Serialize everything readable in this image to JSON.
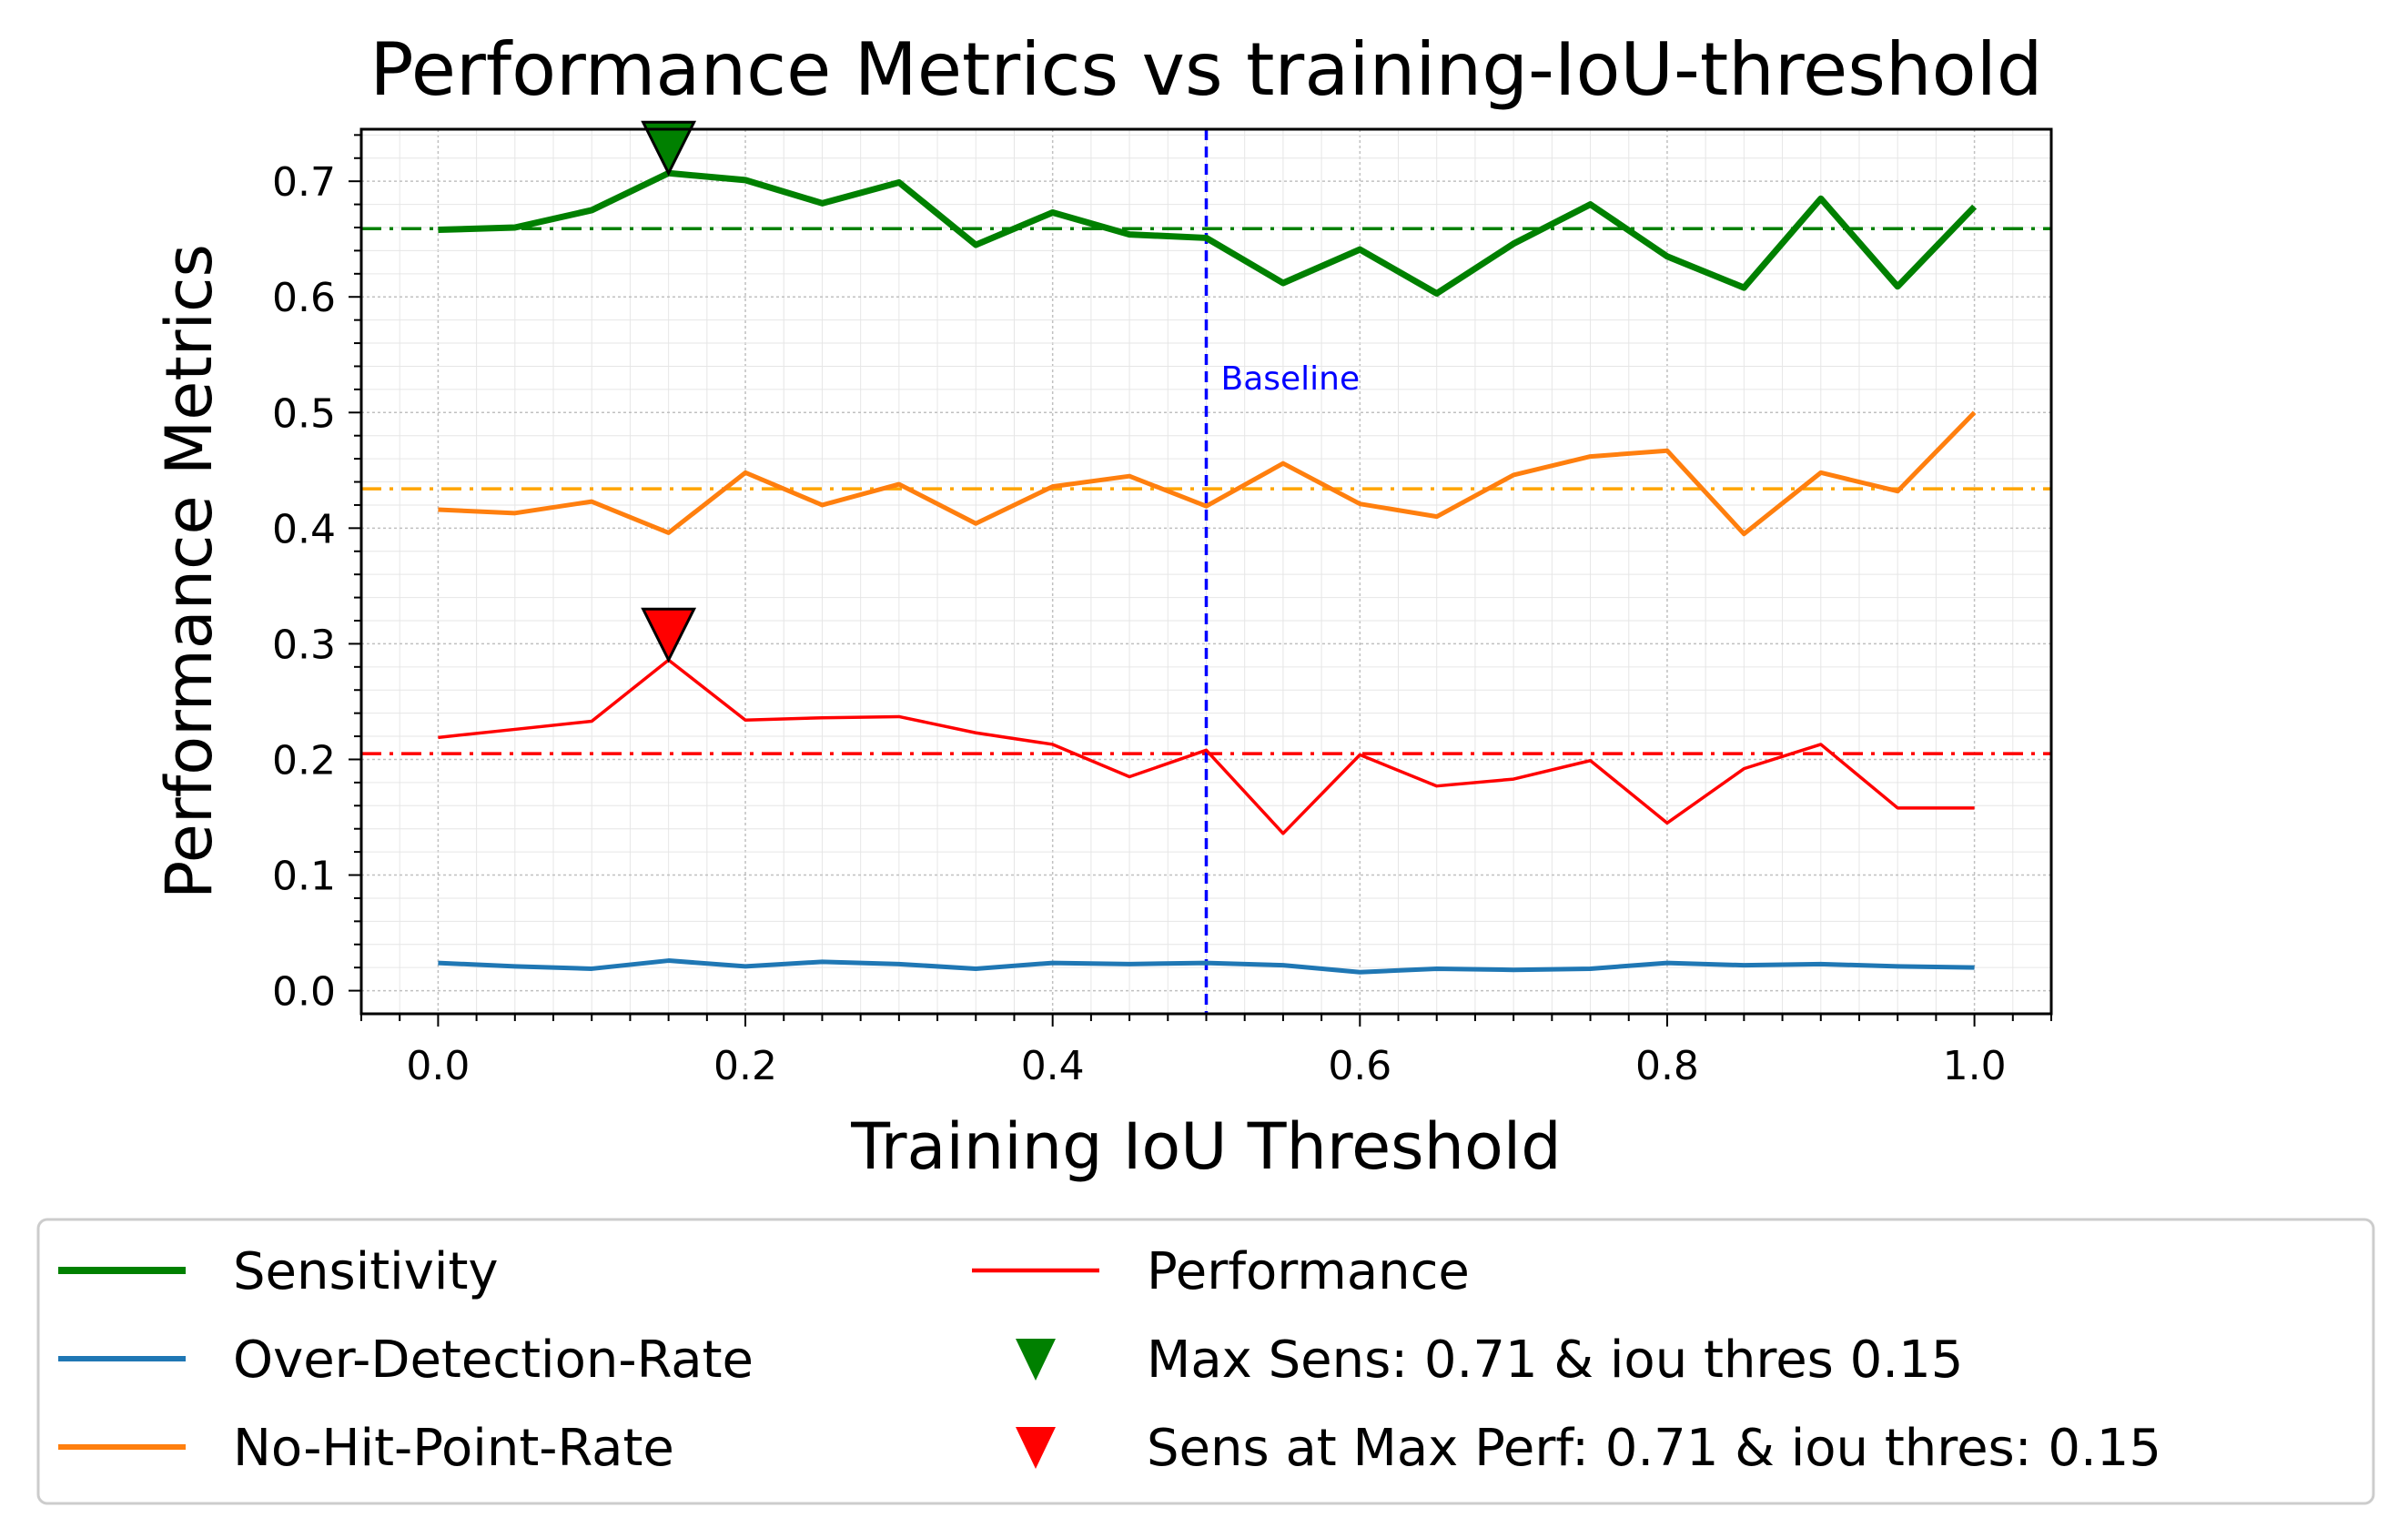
{
  "chart_data": {
    "type": "line",
    "title": "Performance Metrics vs training-IoU-threshold",
    "xlabel": "Training IoU Threshold",
    "ylabel": "Performance Metrics",
    "xlim": [
      -0.05,
      1.05
    ],
    "ylim": [
      -0.02,
      0.745
    ],
    "xticks": [
      0.0,
      0.2,
      0.4,
      0.6,
      0.8,
      1.0
    ],
    "xtick_labels": [
      "0.0",
      "0.2",
      "0.4",
      "0.6",
      "0.8",
      "1.0"
    ],
    "yticks": [
      0.0,
      0.1,
      0.2,
      0.3,
      0.4,
      0.5,
      0.6,
      0.7
    ],
    "ytick_labels": [
      "0.0",
      "0.1",
      "0.2",
      "0.3",
      "0.4",
      "0.5",
      "0.6",
      "0.7"
    ],
    "grid": true,
    "x": [
      0.0,
      0.05,
      0.1,
      0.15,
      0.2,
      0.25,
      0.3,
      0.35,
      0.4,
      0.45,
      0.5,
      0.55,
      0.6,
      0.65,
      0.7,
      0.75,
      0.8,
      0.85,
      0.9,
      0.95,
      1.0
    ],
    "series": [
      {
        "name": "Sensitivity",
        "color": "#008000",
        "width": 7,
        "values": [
          0.658,
          0.66,
          0.675,
          0.707,
          0.701,
          0.681,
          0.699,
          0.645,
          0.673,
          0.654,
          0.651,
          0.612,
          0.641,
          0.603,
          0.646,
          0.68,
          0.635,
          0.608,
          0.685,
          0.609,
          0.678
        ]
      },
      {
        "name": "Over-Detection-Rate",
        "color": "#1f77b4",
        "width": 5,
        "values": [
          0.024,
          0.021,
          0.019,
          0.026,
          0.021,
          0.025,
          0.023,
          0.019,
          0.024,
          0.023,
          0.024,
          0.022,
          0.016,
          0.019,
          0.018,
          0.019,
          0.024,
          0.022,
          0.023,
          0.021,
          0.02
        ]
      },
      {
        "name": "No-Hit-Point-Rate",
        "color": "#ff7f0e",
        "width": 5,
        "values": [
          0.416,
          0.413,
          0.423,
          0.396,
          0.448,
          0.42,
          0.438,
          0.404,
          0.436,
          0.445,
          0.419,
          0.456,
          0.421,
          0.41,
          0.446,
          0.462,
          0.467,
          0.395,
          0.448,
          0.432,
          0.5
        ]
      },
      {
        "name": "Performance",
        "color": "#ff0000",
        "width": 3.5,
        "values": [
          0.219,
          0.226,
          0.233,
          0.286,
          0.234,
          0.236,
          0.237,
          0.223,
          0.213,
          0.185,
          0.208,
          0.136,
          0.204,
          0.177,
          0.183,
          0.199,
          0.145,
          0.192,
          0.213,
          0.158,
          0.158
        ]
      }
    ],
    "hlines": [
      {
        "y": 0.659,
        "color": "#008000"
      },
      {
        "y": 0.434,
        "color": "#ffa500"
      },
      {
        "y": 0.205,
        "color": "#ff0000"
      }
    ],
    "vline": {
      "x": 0.5,
      "color": "#0000ff",
      "label": "Baseline"
    },
    "markers": [
      {
        "name": "Max Sens: 0.71 & iou thres 0.15",
        "x": 0.15,
        "y": 0.707,
        "color": "#008000"
      },
      {
        "name": "Sens at Max Perf: 0.71 & iou thres: 0.15",
        "x": 0.15,
        "y": 0.286,
        "color": "#ff0000"
      }
    ],
    "legend_position": "below plot, two columns"
  }
}
